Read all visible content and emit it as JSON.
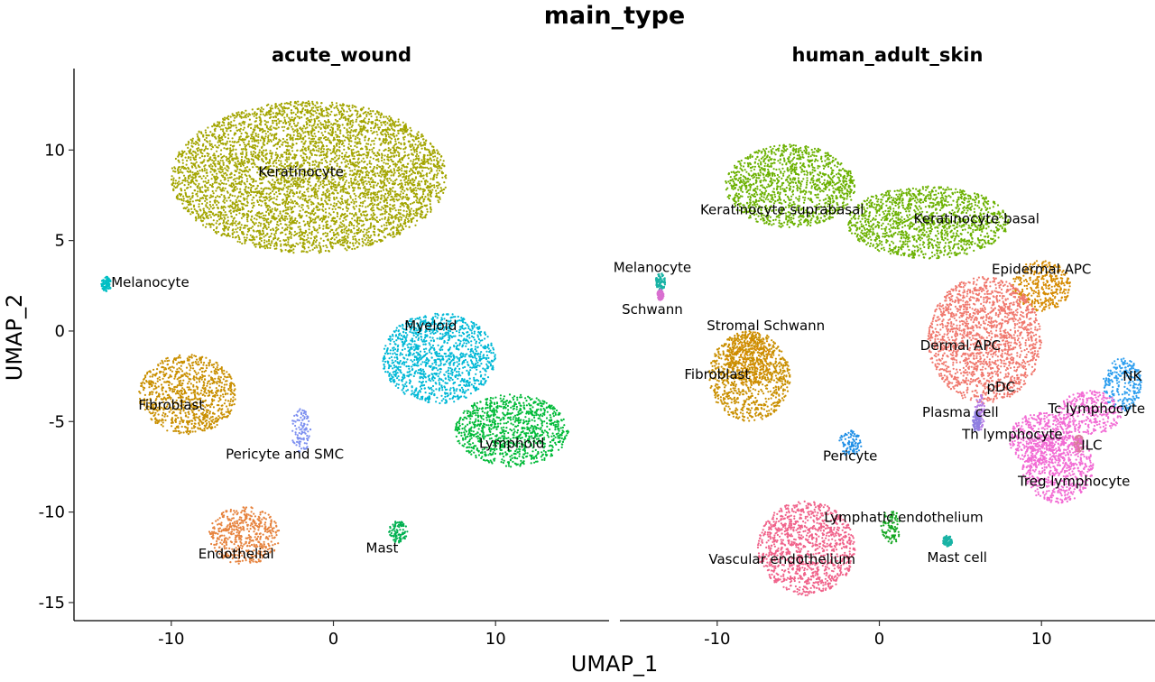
{
  "chart_data": {
    "type": "scatter",
    "title": "main_type",
    "xlabel": "UMAP_1",
    "ylabel": "UMAP_2",
    "xlim": [
      -16,
      17
    ],
    "ylim": [
      -16,
      14.5
    ],
    "xticks": [
      -10,
      0,
      10
    ],
    "yticks": [
      10,
      5,
      0,
      -5,
      -10,
      -15
    ],
    "xtick_labels": [
      "-10",
      "0",
      "10"
    ],
    "ytick_labels": [
      "10",
      "5",
      "0",
      "-5",
      "-10",
      "-15"
    ],
    "grid": false,
    "legend": "none",
    "panels": [
      {
        "title": "acute_wound",
        "clusters": [
          {
            "name": "Keratinocyte",
            "color": "#a3a500",
            "cx": -1.5,
            "cy": 8.5,
            "rx": 8.5,
            "ry": 4.2,
            "label_x": -2,
            "label_y": 8.8
          },
          {
            "name": "Melanocyte",
            "color": "#00bfc4",
            "cx": -14,
            "cy": 2.6,
            "rx": 0.35,
            "ry": 0.4,
            "label_x": -11.3,
            "label_y": 2.7
          },
          {
            "name": "Myeloid",
            "color": "#00b8d6",
            "cx": 6.5,
            "cy": -1.5,
            "rx": 3.5,
            "ry": 2.5,
            "label_x": 6,
            "label_y": 0.3
          },
          {
            "name": "Fibroblast",
            "color": "#c98f00",
            "cx": -9,
            "cy": -3.5,
            "rx": 3,
            "ry": 2.2,
            "label_x": -10,
            "label_y": -4.1
          },
          {
            "name": "Lymphoid",
            "color": "#00ba38",
            "cx": 11,
            "cy": -5.5,
            "rx": 3.5,
            "ry": 2.0,
            "label_x": 11,
            "label_y": -6.2
          },
          {
            "name": "Pericyte and SMC",
            "color": "#7c8ff0",
            "cx": -2,
            "cy": -5.5,
            "rx": 0.6,
            "ry": 1.2,
            "label_x": -3,
            "label_y": -6.8
          },
          {
            "name": "Endothelial",
            "color": "#e6823c",
            "cx": -5.5,
            "cy": -11.3,
            "rx": 2.2,
            "ry": 1.6,
            "label_x": -6,
            "label_y": -12.3
          },
          {
            "name": "Mast",
            "color": "#00b050",
            "cx": 4,
            "cy": -11.1,
            "rx": 0.6,
            "ry": 0.6,
            "label_x": 3,
            "label_y": -12
          }
        ]
      },
      {
        "title": "human_adult_skin",
        "clusters": [
          {
            "name": "Keratinocyte suprabasal",
            "color": "#6bb100",
            "cx": -5.5,
            "cy": 8,
            "rx": 4,
            "ry": 2.3,
            "label_x": -6,
            "label_y": 6.7
          },
          {
            "name": "Keratinocyte basal",
            "color": "#6bb100",
            "cx": 3,
            "cy": 6,
            "rx": 5,
            "ry": 2.0,
            "label_x": 6,
            "label_y": 6.2
          },
          {
            "name": "Melanocyte",
            "color": "#19b3a5",
            "cx": -13.5,
            "cy": 2.7,
            "rx": 0.3,
            "ry": 0.5,
            "label_x": -14,
            "label_y": 3.5
          },
          {
            "name": "Schwann",
            "color": "#d96fd0",
            "cx": -13.5,
            "cy": 2.0,
            "rx": 0.2,
            "ry": 0.3,
            "label_x": -14,
            "label_y": 1.2
          },
          {
            "name": "Epidermal APC",
            "color": "#d58a00",
            "cx": 10,
            "cy": 2.5,
            "rx": 1.8,
            "ry": 1.4,
            "label_x": 10,
            "label_y": 3.4
          },
          {
            "name": "Dermal APC",
            "color": "#f0786e",
            "cx": 6.5,
            "cy": -0.5,
            "rx": 3.5,
            "ry": 3.5,
            "label_x": 5,
            "label_y": -0.8
          },
          {
            "name": "Stromal Schwann",
            "color": "#d58a00",
            "cx": -8,
            "cy": -1.5,
            "rx": 1.5,
            "ry": 1.5,
            "label_x": -7,
            "label_y": 0.3
          },
          {
            "name": "Fibroblast",
            "color": "#c98f00",
            "cx": -8,
            "cy": -2.5,
            "rx": 2.5,
            "ry": 2.5,
            "label_x": -10,
            "label_y": -2.4
          },
          {
            "name": "pDC",
            "color": "#b87fe6",
            "cx": 6.2,
            "cy": -4.5,
            "rx": 0.3,
            "ry": 1.0,
            "label_x": 7.5,
            "label_y": -3.1
          },
          {
            "name": "Plasma cell",
            "color": "#8f7fe0",
            "cx": 6,
            "cy": -5,
            "rx": 0.25,
            "ry": 0.6,
            "label_x": 5,
            "label_y": -4.5
          },
          {
            "name": "NK",
            "color": "#2f9fef",
            "cx": 15,
            "cy": -3,
            "rx": 1.2,
            "ry": 1.5,
            "label_x": 15.6,
            "label_y": -2.5
          },
          {
            "name": "Tc lymphocyte",
            "color": "#f26bd4",
            "cx": 13,
            "cy": -4.5,
            "rx": 2,
            "ry": 1.2,
            "label_x": 13.4,
            "label_y": -4.3
          },
          {
            "name": "Th lymphocyte",
            "color": "#f26bd4",
            "cx": 10,
            "cy": -6,
            "rx": 2,
            "ry": 1.5,
            "label_x": 8.2,
            "label_y": -5.7
          },
          {
            "name": "ILC",
            "color": "#d97b9c",
            "cx": 12.3,
            "cy": -6.2,
            "rx": 0.3,
            "ry": 0.5,
            "label_x": 13.1,
            "label_y": -6.3
          },
          {
            "name": "Treg lymphocyte",
            "color": "#f26bd4",
            "cx": 11,
            "cy": -7.5,
            "rx": 2.2,
            "ry": 2.0,
            "label_x": 12,
            "label_y": -8.3
          },
          {
            "name": "Pericyte",
            "color": "#1f8fe6",
            "cx": -1.8,
            "cy": -6.2,
            "rx": 0.7,
            "ry": 0.7,
            "label_x": -1.8,
            "label_y": -6.9
          },
          {
            "name": "Lymphatic endothelium",
            "color": "#13a621",
            "cx": 0.7,
            "cy": -10.8,
            "rx": 0.6,
            "ry": 1.0,
            "label_x": 1.5,
            "label_y": -10.3
          },
          {
            "name": "Vascular endothelium",
            "color": "#f0628a",
            "cx": -4.5,
            "cy": -12,
            "rx": 3,
            "ry": 2.6,
            "label_x": -6,
            "label_y": -12.6
          },
          {
            "name": "Mast cell",
            "color": "#19b3a5",
            "cx": 4.2,
            "cy": -11.6,
            "rx": 0.3,
            "ry": 0.3,
            "label_x": 4.8,
            "label_y": -12.5
          }
        ]
      }
    ]
  }
}
